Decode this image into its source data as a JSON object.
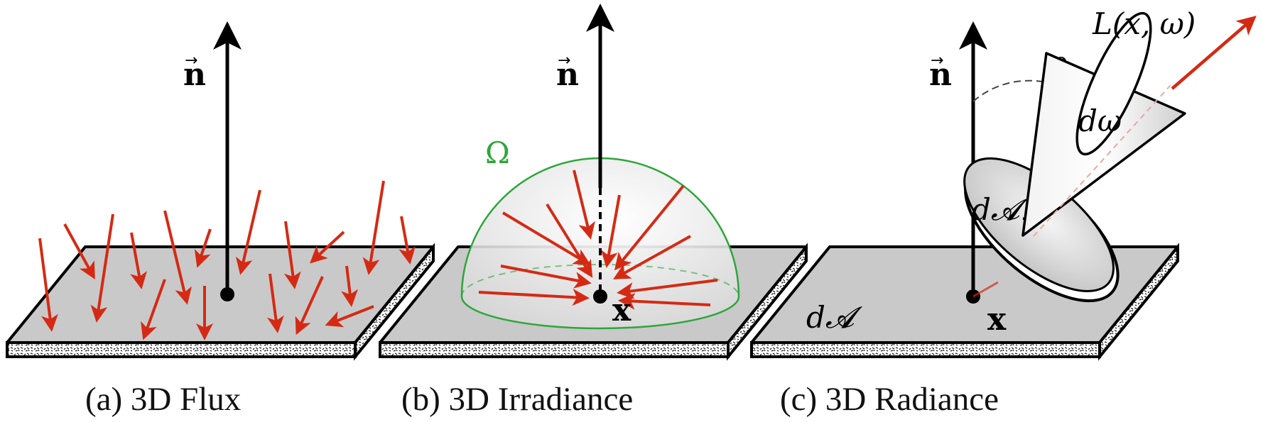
{
  "panels": [
    {
      "id": "a",
      "caption": "(a) 3D Flux",
      "normal_label": "n"
    },
    {
      "id": "b",
      "caption": "(b) 3D Irradiance",
      "normal_label": "n",
      "hemisphere_label": "Ω",
      "point_label": "x"
    },
    {
      "id": "c",
      "caption": "(c) 3D Radiance",
      "normal_label": "n",
      "point_label": "x",
      "area_label": "d𝓐",
      "perp_area_label": "d𝓐⊥",
      "angle_label": "θ",
      "solid_angle_label": "dω",
      "radiance_label": "L(x, ω)"
    }
  ],
  "colors": {
    "arrow_red": "#d42a14",
    "hemisphere_green": "#2ea63a",
    "slab_fill": "#c9c9c9",
    "axis_black": "#000000"
  }
}
